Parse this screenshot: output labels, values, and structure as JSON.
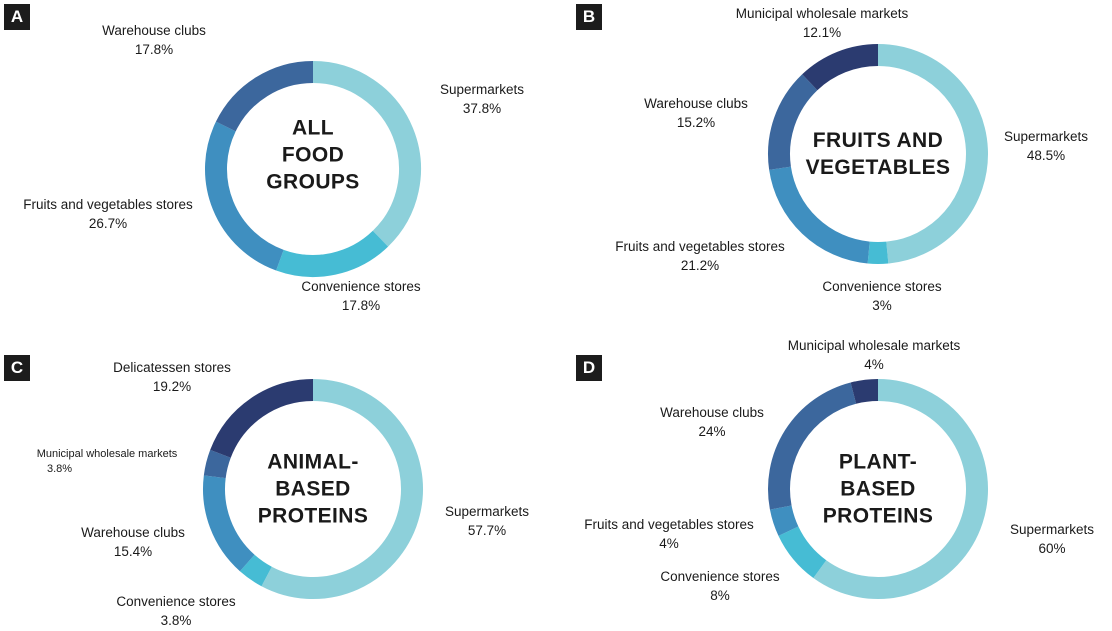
{
  "chart_data": [
    {
      "type": "pie",
      "panel": "A",
      "center_title": "ALL FOOD\nGROUPS",
      "slices": [
        {
          "name": "Supermarkets",
          "value_label": "37.8%",
          "value": 37.8,
          "color": "#8dd0da"
        },
        {
          "name": "Convenience stores",
          "value_label": "17.8%",
          "value": 17.8,
          "color": "#46bcd4"
        },
        {
          "name": "Fruits and vegetables stores",
          "value_label": "26.7%",
          "value": 26.7,
          "color": "#3f8fc0"
        },
        {
          "name": "Warehouse clubs",
          "value_label": "17.8%",
          "value": 17.8,
          "color": "#3c679d"
        }
      ]
    },
    {
      "type": "pie",
      "panel": "B",
      "center_title": "FRUITS AND\nVEGETABLES",
      "slices": [
        {
          "name": "Supermarkets",
          "value_label": "48.5%",
          "value": 48.5,
          "color": "#8dd0da"
        },
        {
          "name": "Convenience stores",
          "value_label": "3%",
          "value": 3,
          "color": "#46bcd4"
        },
        {
          "name": "Fruits and vegetables stores",
          "value_label": "21.2%",
          "value": 21.2,
          "color": "#3f8fc0"
        },
        {
          "name": "Warehouse clubs",
          "value_label": "15.2%",
          "value": 15.2,
          "color": "#3c679d"
        },
        {
          "name": "Municipal wholesale markets",
          "value_label": "12.1%",
          "value": 12.1,
          "color": "#2b3b70"
        }
      ]
    },
    {
      "type": "pie",
      "panel": "C",
      "center_title": "ANIMAL-BASED\nPROTEINS",
      "slices": [
        {
          "name": "Supermarkets",
          "value_label": "57.7%",
          "value": 57.7,
          "color": "#8dd0da"
        },
        {
          "name": "Convenience stores",
          "value_label": "3.8%",
          "value": 3.8,
          "color": "#46bcd4"
        },
        {
          "name": "Warehouse clubs",
          "value_label": "15.4%",
          "value": 15.4,
          "color": "#3f8fc0"
        },
        {
          "name": "Municipal wholesale markets",
          "value_label": "3.8%",
          "value": 3.8,
          "color": "#3c679d"
        },
        {
          "name": "Delicatessen stores",
          "value_label": "19.2%",
          "value": 19.2,
          "color": "#2b3b70"
        }
      ]
    },
    {
      "type": "pie",
      "panel": "D",
      "center_title": "PLANT-BASED\nPROTEINS",
      "slices": [
        {
          "name": "Supermarkets",
          "value_label": "60%",
          "value": 60,
          "color": "#8dd0da"
        },
        {
          "name": "Convenience stores",
          "value_label": "8%",
          "value": 8,
          "color": "#46bcd4"
        },
        {
          "name": "Fruits and vegetables stores",
          "value_label": "4%",
          "value": 4,
          "color": "#3f8fc0"
        },
        {
          "name": "Warehouse clubs",
          "value_label": "24%",
          "value": 24,
          "color": "#3c679d"
        },
        {
          "name": "Municipal wholesale markets",
          "value_label": "4%",
          "value": 4,
          "color": "#2b3b70"
        }
      ]
    }
  ]
}
